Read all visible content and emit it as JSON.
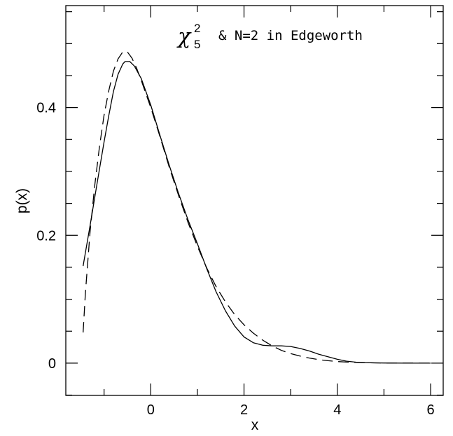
{
  "chart_data": {
    "type": "line",
    "xlabel": "x",
    "ylabel": "p(x)",
    "xlim": [
      -1.82,
      6.27
    ],
    "ylim": [
      -0.0505,
      0.5595
    ],
    "x_major_ticks": [
      0,
      2,
      4,
      6
    ],
    "x_minor_step": 1,
    "y_major_ticks": [
      0,
      0.2,
      0.4
    ],
    "y_minor_step": 0.05,
    "x_tick_labels": [
      "0",
      "2",
      "4",
      "6"
    ],
    "y_tick_labels": [
      "0",
      "0.2",
      "0.4"
    ],
    "grid": false,
    "annotation": {
      "symbol": "χ",
      "superscript": "2",
      "subscript": "5",
      "text": "& N=2 in Edgeworth"
    },
    "series": [
      {
        "style": "solid",
        "color": "#000000",
        "x": [
          -1.45,
          -1.3,
          -1.15,
          -1.0,
          -0.9,
          -0.8,
          -0.7,
          -0.6,
          -0.55,
          -0.45,
          -0.35,
          -0.2,
          0.0,
          0.2,
          0.4,
          0.6,
          0.8,
          1.0,
          1.2,
          1.4,
          1.6,
          1.8,
          2.0,
          2.2,
          2.4,
          2.6,
          2.8,
          3.0,
          3.2,
          3.4,
          3.6,
          3.8,
          4.0,
          4.2,
          4.4,
          4.6,
          4.8,
          5.0,
          5.5,
          6.0
        ],
        "y": [
          0.152,
          0.215,
          0.281,
          0.346,
          0.387,
          0.425,
          0.452,
          0.468,
          0.472,
          0.472,
          0.465,
          0.445,
          0.404,
          0.356,
          0.309,
          0.265,
          0.224,
          0.187,
          0.148,
          0.112,
          0.082,
          0.058,
          0.041,
          0.032,
          0.028,
          0.027,
          0.027,
          0.026,
          0.023,
          0.019,
          0.014,
          0.01,
          0.006,
          0.003,
          0.0015,
          0.0008,
          0.0004,
          0.0002,
          0.0,
          0.0
        ]
      },
      {
        "style": "dashed",
        "color": "#000000",
        "x": [
          -1.45,
          -1.4,
          -1.3,
          -1.2,
          -1.1,
          -1.0,
          -0.9,
          -0.8,
          -0.7,
          -0.6,
          -0.5,
          -0.4,
          -0.3,
          -0.2,
          0.0,
          0.2,
          0.4,
          0.6,
          0.8,
          1.0,
          1.2,
          1.4,
          1.6,
          1.8,
          2.0,
          2.2,
          2.4,
          2.6,
          2.8,
          3.0,
          3.2,
          3.4,
          3.6,
          3.8,
          4.0,
          4.2,
          4.4,
          4.6,
          4.8,
          5.0,
          5.5,
          6.0
        ],
        "y": [
          0.048,
          0.11,
          0.205,
          0.278,
          0.338,
          0.388,
          0.426,
          0.457,
          0.476,
          0.487,
          0.487,
          0.477,
          0.461,
          0.442,
          0.4,
          0.354,
          0.306,
          0.262,
          0.22,
          0.183,
          0.149,
          0.12,
          0.096,
          0.076,
          0.06,
          0.047,
          0.036,
          0.027,
          0.02,
          0.015,
          0.011,
          0.008,
          0.0055,
          0.0038,
          0.0025,
          0.0016,
          0.0011,
          0.0007,
          0.0004,
          0.0002,
          0.0001,
          0.0
        ]
      }
    ]
  }
}
